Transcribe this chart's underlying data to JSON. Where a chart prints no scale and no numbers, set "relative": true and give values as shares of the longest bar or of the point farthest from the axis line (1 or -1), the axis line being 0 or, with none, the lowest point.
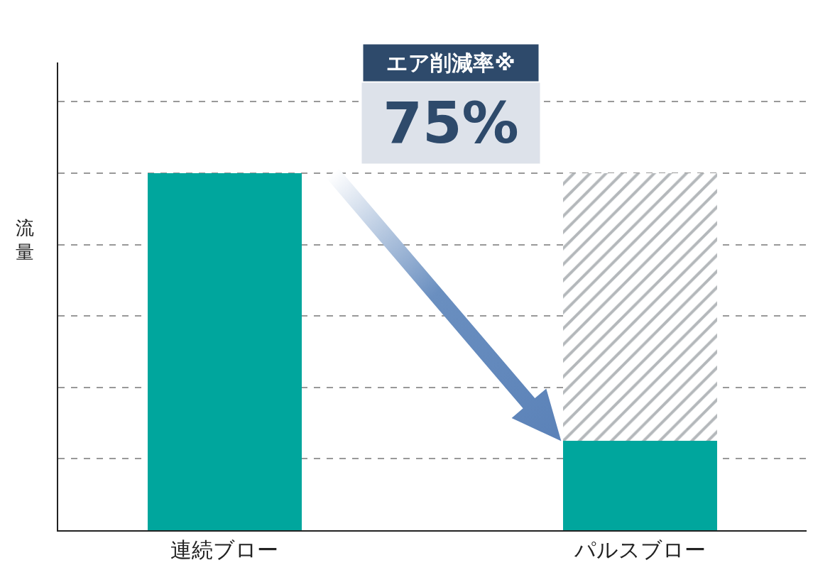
{
  "chart_data": {
    "type": "bar",
    "relative": true,
    "stacked": true,
    "ylabel": "流量",
    "categories": [
      "連続ブロー",
      "パルスブロー"
    ],
    "series": [
      {
        "color": "#00a69d",
        "values": [
          1,
          0.25
        ]
      },
      {
        "color": "#b4b8bb",
        "values": [
          0,
          0.75
        ]
      }
    ],
    "annotations": [
      "エア削減率※",
      "75%"
    ],
    "grid": "y",
    "legend": false
  }
}
